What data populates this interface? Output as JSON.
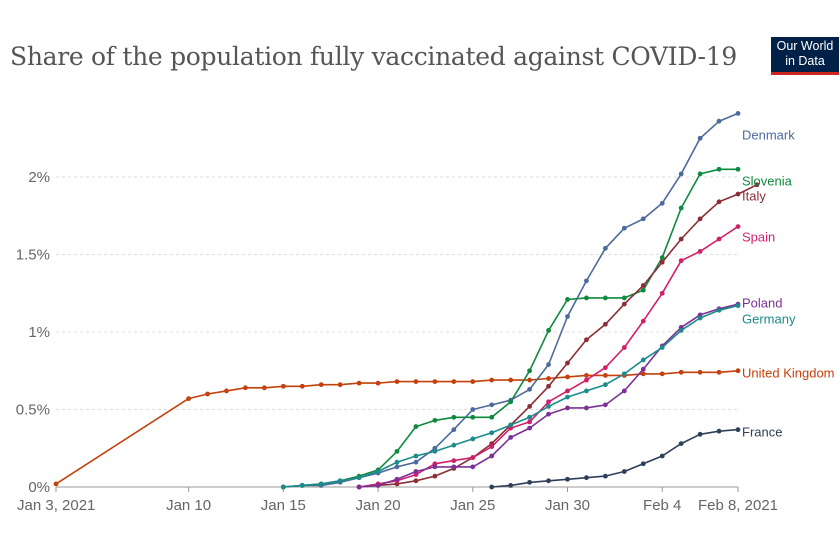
{
  "header": {
    "title": "Share of the population fully vaccinated against COVID-19",
    "logo_line1": "Our World",
    "logo_line2": "in Data"
  },
  "colors": {
    "brand_bg": "#002147",
    "brand_accent": "#ce261e",
    "grid": "#dddddd",
    "axis": "#999999"
  },
  "chart_data": {
    "type": "line",
    "title": "Share of the population fully vaccinated against COVID-19",
    "xlabel": "",
    "ylabel": "",
    "x_unit": "days since Jan 3, 2021",
    "xlim": [
      0,
      36
    ],
    "ylim": [
      0,
      2.4
    ],
    "x_ticks": [
      {
        "x": 0,
        "label": "Jan 3, 2021"
      },
      {
        "x": 7,
        "label": "Jan 10"
      },
      {
        "x": 12,
        "label": "Jan 15"
      },
      {
        "x": 17,
        "label": "Jan 20"
      },
      {
        "x": 22,
        "label": "Jan 25"
      },
      {
        "x": 27,
        "label": "Jan 30"
      },
      {
        "x": 32,
        "label": "Feb 4"
      },
      {
        "x": 36,
        "label": "Feb 8, 2021"
      }
    ],
    "y_ticks": [
      {
        "y": 0,
        "label": "0%"
      },
      {
        "y": 0.5,
        "label": "0.5%"
      },
      {
        "y": 1,
        "label": "1%"
      },
      {
        "y": 1.5,
        "label": "1.5%"
      },
      {
        "y": 2,
        "label": "2%"
      }
    ],
    "series": [
      {
        "name": "United Kingdom",
        "color": "#c2410c",
        "x": [
          0,
          7,
          8,
          9,
          10,
          11,
          12,
          13,
          14,
          15,
          16,
          17,
          18,
          19,
          20,
          21,
          22,
          23,
          24,
          25,
          26,
          27,
          28,
          29,
          30,
          31,
          32,
          33,
          34,
          35,
          36
        ],
        "y": [
          0.02,
          0.57,
          0.6,
          0.62,
          0.64,
          0.64,
          0.65,
          0.65,
          0.66,
          0.66,
          0.67,
          0.67,
          0.68,
          0.68,
          0.68,
          0.68,
          0.68,
          0.69,
          0.69,
          0.69,
          0.7,
          0.71,
          0.72,
          0.72,
          0.72,
          0.73,
          0.73,
          0.74,
          0.74,
          0.74,
          0.75
        ]
      },
      {
        "name": "Denmark",
        "color": "#4c6a9c",
        "x": [
          12,
          13,
          14,
          15,
          16,
          17,
          18,
          19,
          20,
          21,
          22,
          23,
          24,
          25,
          26,
          27,
          28,
          29,
          30,
          31,
          32,
          33,
          34,
          35,
          36
        ],
        "y": [
          0,
          0.01,
          0.01,
          0.03,
          0.06,
          0.09,
          0.13,
          0.16,
          0.25,
          0.37,
          0.5,
          0.53,
          0.56,
          0.63,
          0.79,
          1.1,
          1.33,
          1.54,
          1.67,
          1.73,
          1.83,
          2.02,
          2.25,
          2.36,
          2.41
        ]
      },
      {
        "name": "Slovenia",
        "color": "#0e8a3e",
        "x": [
          12,
          13,
          14,
          15,
          16,
          17,
          18,
          19,
          20,
          21,
          22,
          23,
          24,
          25,
          26,
          27,
          28,
          29,
          30,
          31,
          32,
          33,
          34,
          35,
          36
        ],
        "y": [
          0,
          0.01,
          0.02,
          0.04,
          0.07,
          0.11,
          0.23,
          0.39,
          0.43,
          0.45,
          0.45,
          0.45,
          0.55,
          0.75,
          1.01,
          1.21,
          1.22,
          1.22,
          1.22,
          1.27,
          1.48,
          1.8,
          2.02,
          2.05,
          2.05
        ]
      },
      {
        "name": "Italy",
        "color": "#8c2e35",
        "x": [
          16,
          17,
          18,
          19,
          20,
          21,
          22,
          23,
          24,
          25,
          26,
          27,
          28,
          29,
          30,
          31,
          32,
          33,
          34,
          35,
          36,
          37
        ],
        "y": [
          0,
          0.01,
          0.02,
          0.04,
          0.07,
          0.12,
          0.19,
          0.28,
          0.4,
          0.52,
          0.65,
          0.8,
          0.95,
          1.05,
          1.18,
          1.3,
          1.45,
          1.6,
          1.73,
          1.84,
          1.89,
          1.95
        ]
      },
      {
        "name": "Spain",
        "color": "#d1206b",
        "x": [
          16,
          17,
          18,
          19,
          20,
          21,
          22,
          23,
          24,
          25,
          26,
          27,
          28,
          29,
          30,
          31,
          32,
          33,
          34,
          35,
          36
        ],
        "y": [
          0,
          0.02,
          0.04,
          0.08,
          0.15,
          0.17,
          0.19,
          0.26,
          0.38,
          0.42,
          0.55,
          0.62,
          0.69,
          0.77,
          0.9,
          1.07,
          1.25,
          1.46,
          1.52,
          1.6,
          1.68
        ]
      },
      {
        "name": "Poland",
        "color": "#7b3294",
        "x": [
          16,
          17,
          18,
          19,
          20,
          21,
          22,
          23,
          24,
          25,
          26,
          27,
          28,
          29,
          30,
          31,
          32,
          33,
          34,
          35,
          36
        ],
        "y": [
          0,
          0.01,
          0.05,
          0.1,
          0.13,
          0.13,
          0.13,
          0.2,
          0.32,
          0.38,
          0.47,
          0.51,
          0.51,
          0.53,
          0.62,
          0.76,
          0.91,
          1.03,
          1.11,
          1.15,
          1.18
        ]
      },
      {
        "name": "Germany",
        "color": "#1c8b8b",
        "x": [
          12,
          13,
          14,
          15,
          16,
          17,
          18,
          19,
          20,
          21,
          22,
          23,
          24,
          25,
          26,
          27,
          28,
          29,
          30,
          31,
          32,
          33,
          34,
          35,
          36
        ],
        "y": [
          0,
          0.01,
          0.02,
          0.04,
          0.06,
          0.1,
          0.16,
          0.2,
          0.23,
          0.27,
          0.31,
          0.35,
          0.4,
          0.45,
          0.52,
          0.58,
          0.62,
          0.66,
          0.73,
          0.82,
          0.9,
          1.01,
          1.09,
          1.14,
          1.17
        ]
      },
      {
        "name": "France",
        "color": "#2e3f5a",
        "x": [
          23,
          24,
          25,
          26,
          27,
          28,
          29,
          30,
          31,
          32,
          33,
          34,
          35,
          36
        ],
        "y": [
          0,
          0.01,
          0.03,
          0.04,
          0.05,
          0.06,
          0.07,
          0.1,
          0.15,
          0.2,
          0.28,
          0.34,
          0.36,
          0.37
        ]
      }
    ],
    "legend": [
      {
        "name": "Denmark",
        "color": "#4c6a9c"
      },
      {
        "name": "Slovenia",
        "color": "#0e8a3e"
      },
      {
        "name": "Italy",
        "color": "#8c2e35"
      },
      {
        "name": "Spain",
        "color": "#d1206b"
      },
      {
        "name": "Poland",
        "color": "#7b3294"
      },
      {
        "name": "Germany",
        "color": "#1c8b8b"
      },
      {
        "name": "United Kingdom",
        "color": "#c2410c"
      },
      {
        "name": "France",
        "color": "#2e3f5a"
      }
    ]
  }
}
